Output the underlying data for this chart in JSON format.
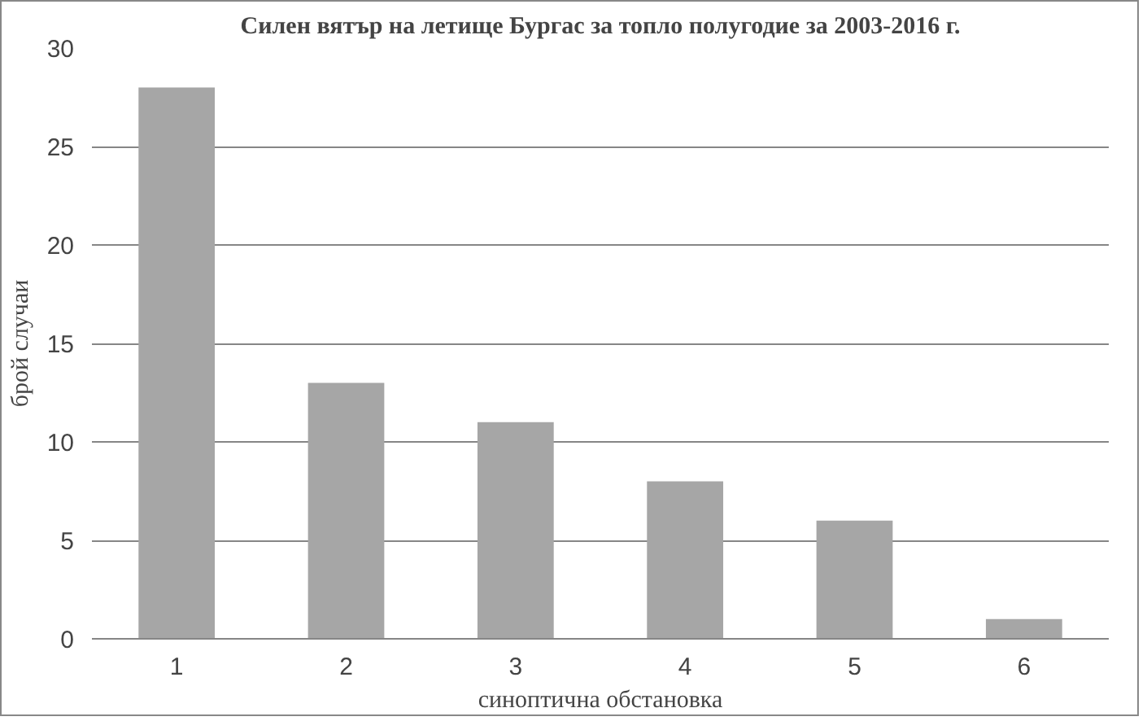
{
  "chart_data": {
    "type": "bar",
    "title": "Силен вятър на летище Бургас за топло полугодие за 2003-2016 г.",
    "xlabel": "синоптична обстановка",
    "ylabel": "брой случаи",
    "categories": [
      "1",
      "2",
      "3",
      "4",
      "5",
      "6"
    ],
    "values": [
      28,
      13,
      11,
      8,
      6,
      1
    ],
    "color": "#a6a6a6",
    "ylim": [
      0,
      30
    ],
    "yticks": [
      0,
      5,
      10,
      15,
      20,
      25,
      30
    ],
    "grid": "y"
  }
}
